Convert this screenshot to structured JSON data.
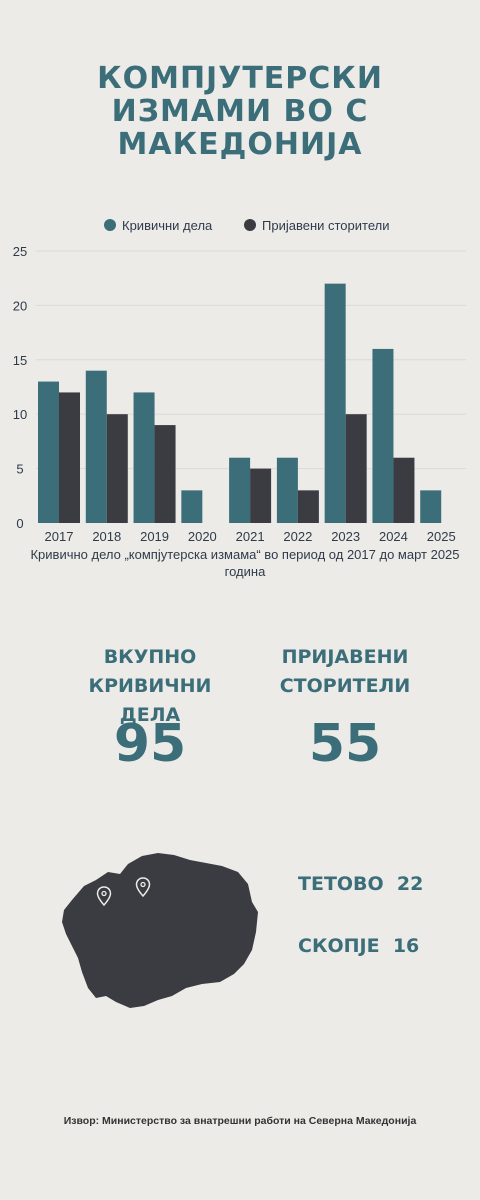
{
  "title_lines": [
    "КОМПЈУТЕРСКИ",
    "ИЗМАМИ ВО С",
    "МАКЕДОНИЈА"
  ],
  "chart_data": {
    "type": "bar",
    "categories": [
      "2017",
      "2018",
      "2019",
      "2020",
      "2021",
      "2022",
      "2023",
      "2024",
      "2025"
    ],
    "series": [
      {
        "name": "Кривични дела",
        "values": [
          13,
          14,
          12,
          3,
          6,
          6,
          22,
          16,
          3
        ],
        "color": "#3b6e79"
      },
      {
        "name": "Пријавени сторители",
        "values": [
          12,
          10,
          9,
          null,
          5,
          3,
          10,
          6,
          null
        ],
        "color": "#3a3c42"
      }
    ],
    "ylim": [
      0,
      25
    ],
    "yticks": [
      0,
      5,
      10,
      15,
      20,
      25
    ],
    "legend_position": "top",
    "grid": true,
    "xlabel": "Кривично дело „компјутерска измама“ во период од 2017 до март 2025 година",
    "ylabel": ""
  },
  "stats": [
    {
      "label_lines": [
        "ВКУПНО",
        "КРИВИЧНИ ДЕЛА"
      ],
      "value": "95"
    },
    {
      "label_lines": [
        "ПРИЈАВЕНИ",
        "СТОРИТЕЛИ"
      ],
      "value": "55"
    }
  ],
  "cities": [
    {
      "name": "ТЕТОВО",
      "count": "22"
    },
    {
      "name": "СКОПЈЕ",
      "count": "16"
    }
  ],
  "map_color": "#3a3c42",
  "source": "Извор: Министерство за внатрешни работи на Северна Македонија"
}
